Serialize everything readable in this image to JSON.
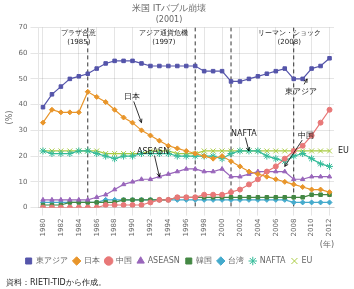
{
  "chart_data": {
    "type": "line",
    "title": "米国 ITバブル崩壊",
    "subtitle": "(2001)",
    "x_label": "(年)",
    "y_label": "(%)",
    "x": [
      1980,
      1981,
      1982,
      1983,
      1984,
      1985,
      1986,
      1987,
      1988,
      1989,
      1990,
      1991,
      1992,
      1993,
      1994,
      1995,
      1996,
      1997,
      1998,
      1999,
      2000,
      2001,
      2002,
      2003,
      2004,
      2005,
      2006,
      2007,
      2008,
      2009,
      2010,
      2011,
      2012
    ],
    "xlim": [
      1979.5,
      2012.5
    ],
    "xticks": [
      1980,
      1982,
      1984,
      1986,
      1988,
      1990,
      1992,
      1994,
      1996,
      1998,
      2000,
      2002,
      2004,
      2006,
      2008,
      2010,
      2012
    ],
    "ylim": [
      0,
      70
    ],
    "yticks": [
      0,
      10,
      20,
      30,
      40,
      50,
      60,
      70
    ],
    "grid": true,
    "legend": "bottom",
    "series": [
      {
        "name": "東アジア",
        "color": "#5555aa",
        "marker": "square",
        "values": [
          39,
          44,
          47,
          50,
          51,
          52,
          54,
          56,
          57,
          57,
          57,
          56,
          55,
          55,
          55,
          55,
          55,
          55,
          53,
          53,
          53,
          49,
          49,
          50,
          51,
          52,
          53,
          54,
          50,
          50,
          54,
          55,
          58
        ]
      },
      {
        "name": "日本",
        "color": "#e8952a",
        "marker": "diamond",
        "values": [
          33,
          38,
          37,
          37,
          37,
          45,
          43,
          41,
          38,
          35,
          33,
          30,
          28,
          26,
          24,
          23,
          22,
          21,
          20,
          19,
          20,
          18,
          16,
          14,
          13,
          12,
          11,
          10,
          9,
          8,
          7,
          7,
          6
        ]
      },
      {
        "name": "中国",
        "color": "#e87878",
        "marker": "circle",
        "values": [
          0,
          0,
          0,
          0,
          0,
          0,
          0,
          1,
          1,
          1,
          1,
          1,
          2,
          3,
          3,
          4,
          4,
          4,
          5,
          5,
          5,
          6,
          7,
          9,
          11,
          14,
          16,
          19,
          22,
          24,
          28,
          33,
          38
        ]
      },
      {
        "name": "ASEASN",
        "color": "#9966bb",
        "marker": "triangle",
        "values": [
          3,
          3,
          3,
          3,
          3,
          3,
          4,
          5,
          7,
          9,
          10,
          11,
          11,
          12,
          13,
          14,
          15,
          15,
          14,
          14,
          15,
          12,
          12,
          13,
          14,
          14,
          14,
          14,
          11,
          11,
          12,
          12,
          12
        ]
      },
      {
        "name": "韓国",
        "color": "#448844",
        "marker": "square",
        "values": [
          1,
          1,
          1,
          2,
          2,
          2,
          2,
          2,
          2,
          3,
          3,
          3,
          3,
          3,
          3,
          4,
          4,
          4,
          4,
          4,
          4,
          4,
          4,
          4,
          4,
          4,
          4,
          4,
          4,
          4,
          5,
          5,
          5
        ]
      },
      {
        "name": "台湾",
        "color": "#44aacc",
        "marker": "diamond",
        "values": [
          2,
          2,
          2,
          2,
          2,
          2,
          2,
          3,
          3,
          3,
          3,
          3,
          3,
          3,
          3,
          3,
          3,
          3,
          3,
          3,
          3,
          3,
          3,
          3,
          3,
          3,
          3,
          3,
          2,
          2,
          2,
          2,
          2
        ]
      },
      {
        "name": "NAFTA",
        "color": "#33bb99",
        "marker": "star",
        "values": [
          22,
          21,
          21,
          21,
          22,
          22,
          21,
          20,
          19,
          20,
          20,
          21,
          21,
          21,
          21,
          20,
          20,
          20,
          20,
          20,
          19,
          21,
          22,
          22,
          22,
          20,
          19,
          18,
          20,
          21,
          19,
          17,
          16
        ]
      },
      {
        "name": "EU",
        "color": "#aacc44",
        "marker": "x",
        "values": [
          22,
          22,
          22,
          22,
          22,
          22,
          22,
          21,
          21,
          21,
          21,
          21,
          22,
          22,
          22,
          21,
          21,
          21,
          22,
          22,
          22,
          22,
          22,
          22,
          22,
          22,
          22,
          22,
          22,
          22,
          22,
          22,
          22
        ]
      }
    ],
    "annotations": [
      {
        "type": "vline",
        "x": 1985,
        "line_style": "dashed"
      },
      {
        "type": "vline",
        "x": 1997,
        "line_style": "dashed"
      },
      {
        "type": "vline",
        "x": 2001,
        "line_style": "dashed"
      },
      {
        "type": "vline",
        "x": 2008,
        "line_style": "dashed"
      },
      {
        "text": "プラザ合意\n(1985)",
        "x": 1984,
        "y": 69
      },
      {
        "text": "アジア通貨危機\n(1997)",
        "x": 1993.5,
        "y": 69
      },
      {
        "text": "リーマン・ショック\n(2008)",
        "x": 2007.5,
        "y": 69
      },
      {
        "text": "日本",
        "x": 1991,
        "y": 33,
        "text_x": 1989,
        "text_y": 42
      },
      {
        "text": "東アジア",
        "x": 2009.5,
        "y": 50,
        "text_x": 2007,
        "text_y": 44
      },
      {
        "text": "NAFTA",
        "x": 2003,
        "y": 22,
        "text_x": 2001,
        "text_y": 28
      },
      {
        "text": "中国",
        "x": 2007,
        "y": 16,
        "text_x": 2008.5,
        "text_y": 27
      },
      {
        "text": "ASEASN",
        "x": 1993,
        "y": 12,
        "text_x": 1990.5,
        "text_y": 21
      },
      {
        "text": "EU",
        "y": 22
      }
    ],
    "source": "資料：RIETI-TIDから作成。"
  }
}
